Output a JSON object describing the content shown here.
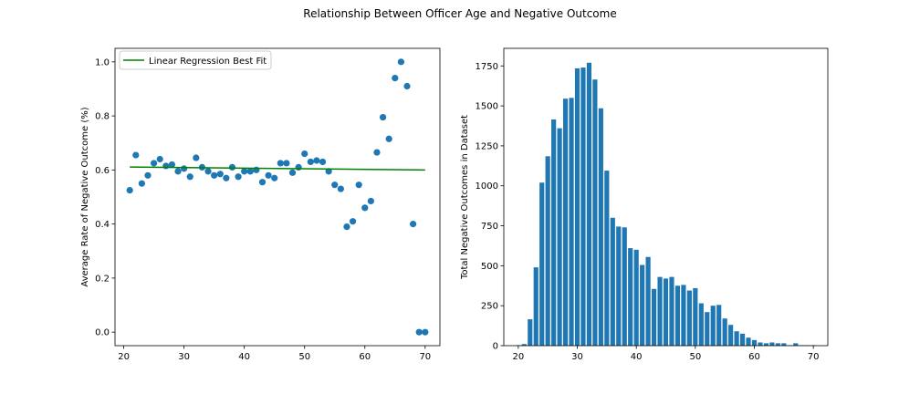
{
  "figure": {
    "title": "Relationship Between Officer Age and Negative Outcome"
  },
  "chart_data": [
    {
      "type": "scatter",
      "xlabel": "",
      "ylabel": "Average Rate of Negative Outcome (%)",
      "xlim": [
        18.55,
        72.45
      ],
      "ylim": [
        -0.05,
        1.05
      ],
      "xticks": [
        20,
        30,
        40,
        50,
        60,
        70
      ],
      "yticks": [
        0.0,
        0.2,
        0.4,
        0.6,
        0.8,
        1.0
      ],
      "ytick_labels": [
        "0.0",
        "0.2",
        "0.4",
        "0.6",
        "0.8",
        "1.0"
      ],
      "grid": false,
      "legend_position": "top-left",
      "marker_color": "#1f77b4",
      "line_color": "#008000",
      "x": [
        21,
        22,
        23,
        24,
        25,
        26,
        27,
        28,
        29,
        30,
        31,
        32,
        33,
        34,
        35,
        36,
        37,
        38,
        39,
        40,
        41,
        42,
        43,
        44,
        45,
        46,
        47,
        48,
        49,
        50,
        51,
        52,
        53,
        54,
        55,
        56,
        57,
        58,
        59,
        60,
        61,
        62,
        63,
        64,
        65,
        66,
        67,
        68,
        69,
        70
      ],
      "y": [
        0.525,
        0.655,
        0.55,
        0.58,
        0.625,
        0.64,
        0.615,
        0.62,
        0.595,
        0.605,
        0.575,
        0.645,
        0.61,
        0.595,
        0.58,
        0.585,
        0.57,
        0.61,
        0.575,
        0.595,
        0.595,
        0.6,
        0.555,
        0.58,
        0.57,
        0.625,
        0.625,
        0.59,
        0.61,
        0.66,
        0.63,
        0.635,
        0.63,
        0.595,
        0.545,
        0.53,
        0.39,
        0.41,
        0.545,
        0.46,
        0.485,
        0.665,
        0.795,
        0.715,
        0.94,
        1.0,
        0.91,
        0.4,
        0.0,
        0.0
      ],
      "regression": {
        "name": "Linear Regression Best Fit",
        "x": [
          21,
          70
        ],
        "y": [
          0.611,
          0.6
        ]
      }
    },
    {
      "type": "bar",
      "xlabel": "",
      "ylabel": "Total Negative Outcomes in Dataset",
      "xlim": [
        17.55,
        72.45
      ],
      "ylim": [
        0,
        1860
      ],
      "xticks": [
        20,
        30,
        40,
        50,
        60,
        70
      ],
      "yticks": [
        0,
        250,
        500,
        750,
        1000,
        1250,
        1500,
        1750
      ],
      "grid": false,
      "bar_color": "#1f77b4",
      "x": [
        20,
        21,
        22,
        23,
        24,
        25,
        26,
        27,
        28,
        29,
        30,
        31,
        32,
        33,
        34,
        35,
        36,
        37,
        38,
        39,
        40,
        41,
        42,
        43,
        44,
        45,
        46,
        47,
        48,
        49,
        50,
        51,
        52,
        53,
        54,
        55,
        56,
        57,
        58,
        59,
        60,
        61,
        62,
        63,
        64,
        65,
        66,
        67,
        68,
        69,
        70
      ],
      "values": [
        3,
        10,
        165,
        490,
        1020,
        1185,
        1415,
        1360,
        1545,
        1550,
        1735,
        1740,
        1770,
        1665,
        1485,
        1095,
        800,
        745,
        740,
        610,
        600,
        505,
        555,
        355,
        430,
        420,
        430,
        375,
        380,
        345,
        360,
        265,
        210,
        250,
        255,
        170,
        130,
        90,
        75,
        50,
        35,
        20,
        15,
        20,
        15,
        15,
        3,
        15,
        3,
        3,
        3
      ]
    }
  ]
}
